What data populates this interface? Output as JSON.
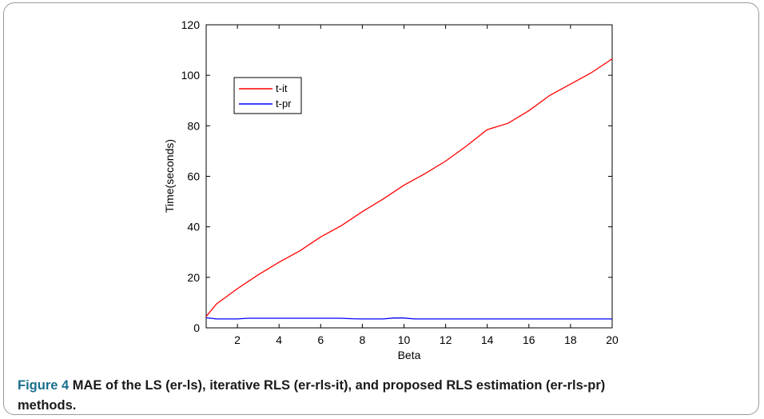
{
  "figure": {
    "label": "Figure 4",
    "caption": " MAE of the LS (er-ls), iterative RLS (er-rls-it), and proposed RLS estimation (er-rls-pr) methods."
  },
  "chart_data": {
    "type": "line",
    "xlabel": "Beta",
    "ylabel": "Time(seconds)",
    "xlim": [
      0.5,
      20
    ],
    "ylim": [
      0,
      120
    ],
    "xticks": [
      2,
      4,
      6,
      8,
      10,
      12,
      14,
      16,
      18,
      20
    ],
    "yticks": [
      0,
      20,
      40,
      60,
      80,
      100,
      120
    ],
    "grid": false,
    "legend_position": "top-left",
    "series": [
      {
        "name": "t-it",
        "color": "#ff0000",
        "x": [
          0.5,
          1.0,
          1.5,
          2.0,
          3.0,
          4.0,
          5.0,
          6.0,
          7.0,
          8.0,
          9.0,
          10.0,
          11.0,
          12.0,
          13.0,
          14.0,
          15.0,
          16.0,
          17.0,
          18.0,
          19.0,
          20.0
        ],
        "y": [
          4.5,
          9.5,
          12.5,
          15.5,
          21,
          26,
          30.5,
          36,
          40.5,
          46,
          51,
          56.5,
          61,
          66,
          72,
          78.5,
          81,
          86,
          92,
          96.5,
          101,
          106.5
        ]
      },
      {
        "name": "t-pr",
        "color": "#0000ff",
        "x": [
          0.5,
          1.0,
          2.0,
          2.5,
          3.0,
          4.0,
          5.0,
          6.0,
          7.0,
          7.5,
          8.0,
          9.0,
          9.5,
          10.0,
          10.5,
          11.0,
          12.0,
          14.0,
          16.0,
          18.0,
          20.0
        ],
        "y": [
          4.0,
          3.5,
          3.5,
          3.8,
          3.8,
          3.8,
          3.8,
          3.8,
          3.8,
          3.6,
          3.5,
          3.5,
          3.9,
          3.9,
          3.5,
          3.5,
          3.5,
          3.5,
          3.5,
          3.5,
          3.5
        ]
      }
    ]
  }
}
